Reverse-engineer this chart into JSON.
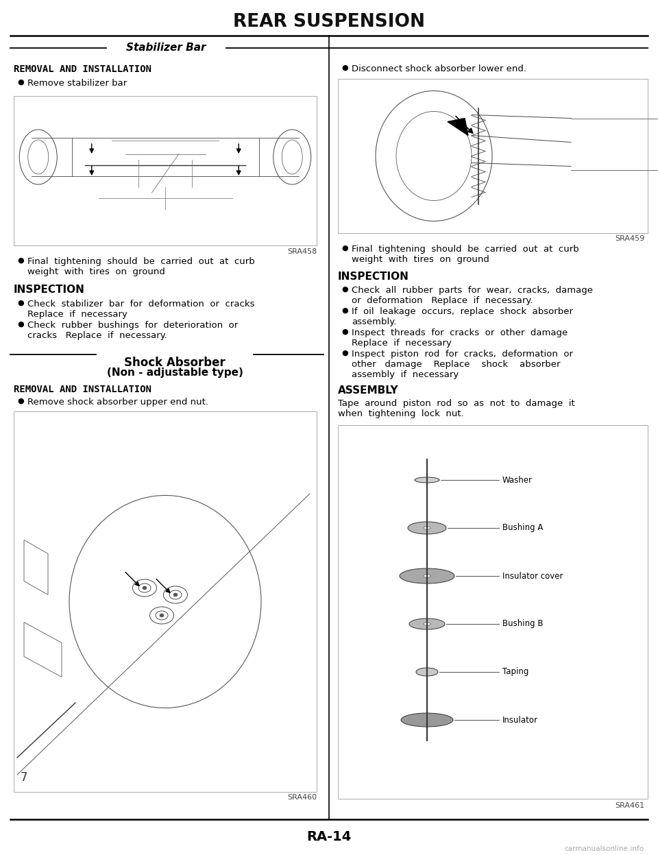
{
  "title": "REAR SUSPENSION",
  "section_header": "Stabilizer Bar",
  "page_number": "RA-14",
  "watermark": "carmanualsonline.info",
  "bg_color": "#ffffff",
  "text_color": "#000000",
  "left_col": {
    "ri_header": "REMOVAL AND INSTALLATION",
    "bullet1": "Remove stabilizer bar",
    "img1_label": "SRA458",
    "bullet2_line1": "Final  tightening  should  be  carried  out  at  curb",
    "bullet2_line2": "weight  with  tires  on  ground",
    "insp_header": "INSPECTION",
    "insp_b1_line1": "Check  stabilizer  bar  for  deformation  or  cracks",
    "insp_b1_line2": "Replace  if  necessary",
    "insp_b2_line1": "Check  rubber  bushings  for  deterioration  or",
    "insp_b2_line2": "cracks   Replace  if  necessary.",
    "shock_header1": "Shock Absorber",
    "shock_header2": "(Non - adjustable type)",
    "ri_header2": "REMOVAL AND INSTALLATION",
    "bullet3": "Remove shock absorber upper end nut.",
    "img2_label": "SRA460"
  },
  "right_col": {
    "bullet1_line1": "Disconnect shock absorber lower end.",
    "img1_label": "SRA459",
    "bullet2_line1": "Final  tightening  should  be  carried  out  at  curb",
    "bullet2_line2": "weight  with  tires  on  ground",
    "insp_header": "INSPECTION",
    "insp_b1_line1": "Check  all  rubber  parts  for  wear,  cracks,  damage",
    "insp_b1_line2": "or  deformation   Replace  if  necessary.",
    "insp_b2_line1": "If  oil  leakage  occurs,  replace  shock  absorber",
    "insp_b2_line2": "assembly.",
    "insp_b3_line1": "Inspect  threads  for  cracks  or  other  damage",
    "insp_b3_line2": "Replace  if  necessary",
    "insp_b4_line1": "Inspect  piston  rod  for  cracks,  deformation  or",
    "insp_b4_line2": "other   damage    Replace    shock    absorber",
    "insp_b4_line3": "assembly  if  necessary",
    "assembly_header": "ASSEMBLY",
    "assembly_line1": "Tape  around  piston  rod  so  as  not  to  damage  it",
    "assembly_line2": "when  tightening  lock  nut.",
    "img2_label": "SRA461",
    "img2_annotations": [
      "Washer",
      "Bushing A",
      "Insulator cover",
      "Bushing B",
      "Taping",
      "Insulator"
    ]
  }
}
